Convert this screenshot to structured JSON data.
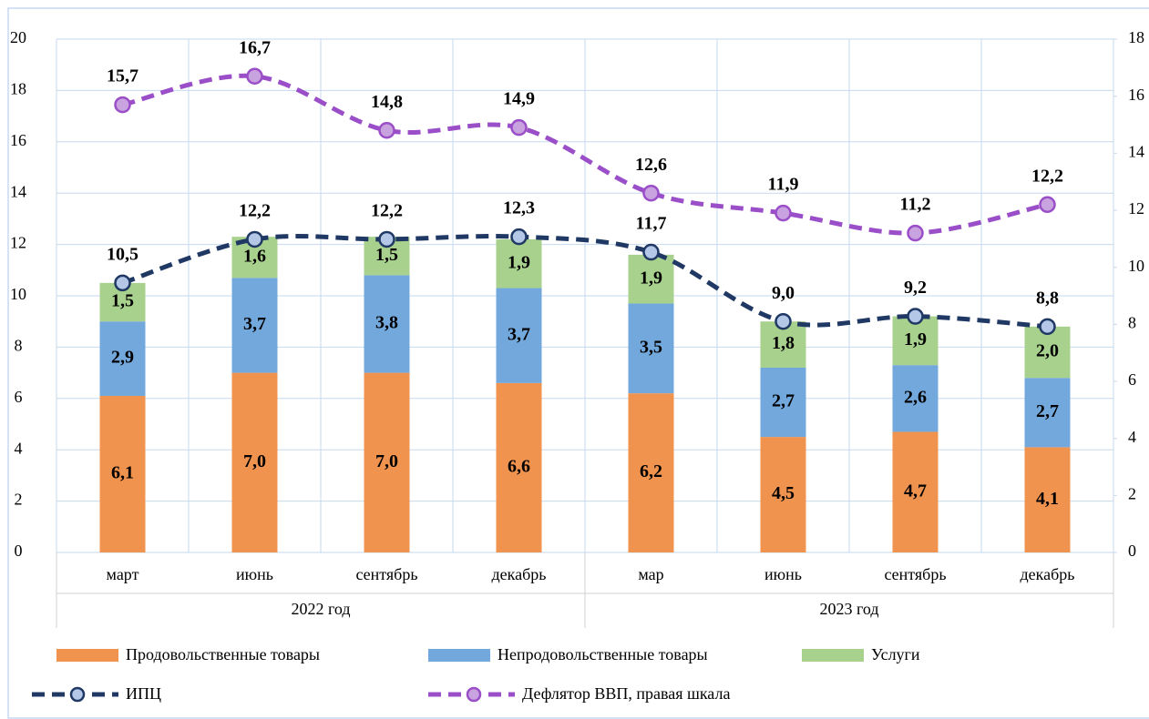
{
  "chart_data": {
    "type": "stacked-bar-line",
    "categories": [
      "март",
      "июнь",
      "сентябрь",
      "декабрь",
      "мар",
      "июнь",
      "сентябрь",
      "декабрь"
    ],
    "groups": [
      "2022 год",
      "2023 год"
    ],
    "ylim": [
      0,
      20
    ],
    "yticks": [
      0,
      2,
      4,
      6,
      8,
      10,
      12,
      14,
      16,
      18,
      20
    ],
    "y2lim": [
      0,
      18
    ],
    "y2ticks": [
      0,
      2,
      4,
      6,
      8,
      10,
      12,
      14,
      16,
      18
    ],
    "grid": true,
    "legend": "bottom",
    "series": [
      {
        "name": "Продовольственные товары",
        "type": "bar",
        "color": "#f0934f",
        "values": [
          6.1,
          7.0,
          7.0,
          6.6,
          6.2,
          4.5,
          4.7,
          4.1
        ],
        "value_labels": [
          "6,1",
          "7,0",
          "7,0",
          "6,6",
          "6,2",
          "4,5",
          "4,7",
          "4,1"
        ]
      },
      {
        "name": "Непродовольственные товары",
        "type": "bar",
        "color": "#72a8dc",
        "values": [
          2.9,
          3.7,
          3.8,
          3.7,
          3.5,
          2.7,
          2.6,
          2.7
        ],
        "value_labels": [
          "2,9",
          "3,7",
          "3,8",
          "3,7",
          "3,5",
          "2,7",
          "2,6",
          "2,7"
        ]
      },
      {
        "name": "Услуги",
        "type": "bar",
        "color": "#a9d18e",
        "values": [
          1.5,
          1.6,
          1.5,
          1.9,
          1.9,
          1.8,
          1.9,
          2.0
        ],
        "value_labels": [
          "1,5",
          "1,6",
          "1,5",
          "1,9",
          "1,9",
          "1,8",
          "1,9",
          "2,0"
        ]
      },
      {
        "name": "ИПЦ",
        "type": "line",
        "color": "#1f3864",
        "marker_color": "#b4c7e7",
        "values": [
          10.5,
          12.2,
          12.2,
          12.3,
          11.7,
          9.0,
          9.2,
          8.8
        ],
        "value_labels": [
          "10,5",
          "12,2",
          "12,2",
          "12,3",
          "11,7",
          "9,0",
          "9,2",
          "8,8"
        ]
      },
      {
        "name": "Дефлятор ВВП, правая шкала",
        "type": "line",
        "axis": "y2",
        "color": "#9a4fc8",
        "marker_color": "#c9a3df",
        "values": [
          15.7,
          16.7,
          14.8,
          14.9,
          12.6,
          11.9,
          11.2,
          12.2
        ],
        "value_labels": [
          "15,7",
          "16,7",
          "14,8",
          "14,9",
          "12,6",
          "11,9",
          "11,2",
          "12,2"
        ]
      }
    ]
  }
}
